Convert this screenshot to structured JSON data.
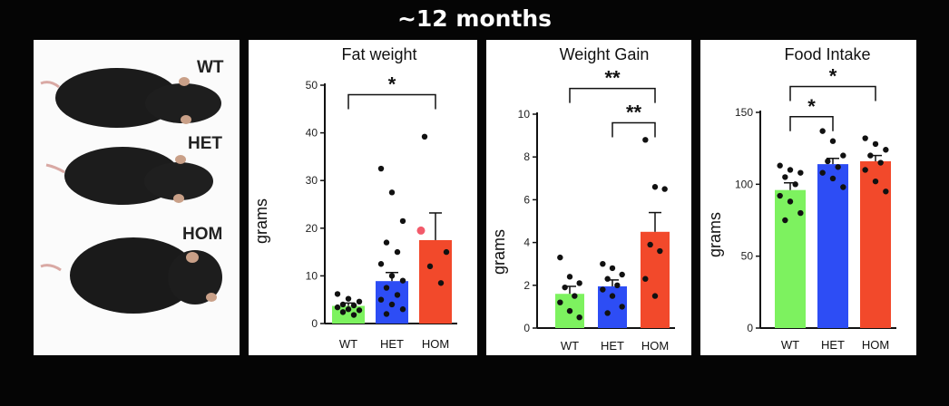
{
  "header": {
    "title": "~12 months"
  },
  "photo": {
    "labels": [
      "WT",
      "HET",
      "HOM"
    ]
  },
  "colors": {
    "WT": "#7df25f",
    "HET": "#2d4df5",
    "HOM": "#f2492b",
    "point": "#111111",
    "highlight": "#f25a6a"
  },
  "chart_data": [
    {
      "type": "bar",
      "title": "Fat weight",
      "ylabel": "grams",
      "xlabel": "",
      "ylim": [
        0,
        50
      ],
      "yticks": [
        0,
        10,
        20,
        30,
        40,
        50
      ],
      "categories": [
        "WT",
        "HET",
        "HOM"
      ],
      "values": [
        3.7,
        8.9,
        17.5
      ],
      "errors": [
        0.6,
        1.8,
        5.7
      ],
      "points": [
        [
          6.2,
          5.2,
          4.6,
          4.0,
          3.8,
          3.4,
          3.0,
          2.8,
          2.4,
          1.8
        ],
        [
          32.5,
          27.5,
          21.5,
          17.0,
          15.0,
          12.5,
          10.0,
          9.0,
          7.5,
          6.0,
          5.0,
          4.0,
          3.0,
          2.0
        ],
        [
          39.2,
          19.5,
          15.0,
          12.0,
          8.5
        ]
      ],
      "highlight_point": {
        "series": 2,
        "value": 19.5
      },
      "significance": [
        {
          "from": 0,
          "to": 2,
          "label": "*",
          "y": 48
        }
      ]
    },
    {
      "type": "bar",
      "title": "Weight Gain",
      "ylabel": "grams",
      "xlabel": "",
      "ylim": [
        0,
        10
      ],
      "yticks": [
        0,
        2,
        4,
        6,
        8,
        10
      ],
      "categories": [
        "WT",
        "HET",
        "HOM"
      ],
      "values": [
        1.6,
        1.95,
        4.5
      ],
      "errors": [
        0.35,
        0.3,
        0.9
      ],
      "points": [
        [
          3.3,
          2.4,
          2.1,
          1.9,
          1.5,
          1.2,
          0.8,
          0.5
        ],
        [
          3.0,
          2.8,
          2.5,
          2.3,
          2.0,
          1.8,
          1.5,
          1.0,
          0.7
        ],
        [
          8.8,
          6.6,
          6.5,
          3.9,
          3.6,
          2.3,
          1.5
        ]
      ],
      "significance": [
        {
          "from": 0,
          "to": 2,
          "label": "**",
          "y": 11.2
        },
        {
          "from": 1,
          "to": 2,
          "label": "**",
          "y": 9.6
        }
      ]
    },
    {
      "type": "bar",
      "title": "Food Intake",
      "ylabel": "grams",
      "xlabel": "",
      "ylim": [
        0,
        150
      ],
      "yticks": [
        0,
        50,
        100,
        150
      ],
      "categories": [
        "WT",
        "HET",
        "HOM"
      ],
      "values": [
        96,
        114,
        116
      ],
      "errors": [
        5,
        4,
        4
      ],
      "points": [
        [
          113,
          110,
          108,
          105,
          100,
          92,
          88,
          80,
          75
        ],
        [
          137,
          130,
          120,
          116,
          112,
          108,
          104,
          98
        ],
        [
          132,
          128,
          124,
          120,
          115,
          110,
          102,
          95
        ]
      ],
      "significance": [
        {
          "from": 0,
          "to": 2,
          "label": "*",
          "y": 168
        },
        {
          "from": 0,
          "to": 1,
          "label": "*",
          "y": 147
        }
      ]
    }
  ]
}
